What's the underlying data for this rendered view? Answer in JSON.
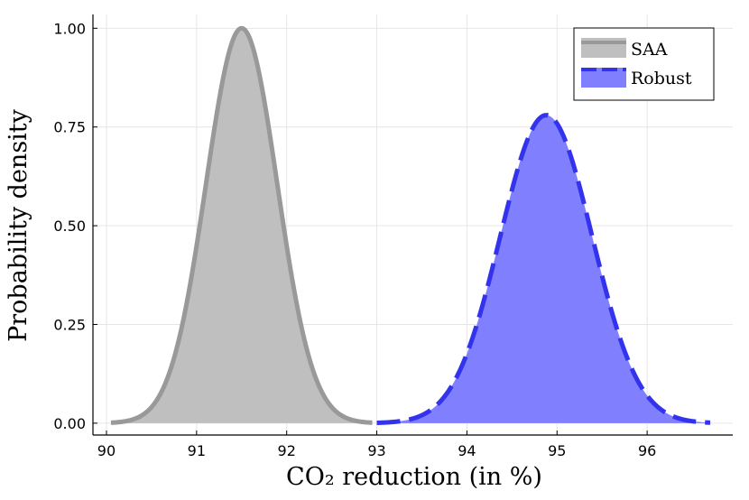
{
  "chart_data": {
    "type": "area",
    "xlabel": "CO₂ reduction (in %)",
    "ylabel": "Probability density",
    "xlim": [
      89.85,
      96.95
    ],
    "ylim": [
      -0.03,
      1.035
    ],
    "xticks": [
      90,
      91,
      92,
      93,
      94,
      95,
      96
    ],
    "xtick_labels": [
      "90",
      "91",
      "92",
      "93",
      "94",
      "95",
      "96"
    ],
    "yticks": [
      0,
      0.25,
      0.5,
      0.75,
      1.0
    ],
    "ytick_labels": [
      "0.00",
      "0.25",
      "0.50",
      "0.75",
      "1.00"
    ],
    "grid": true,
    "legend": "top-right",
    "series": [
      {
        "name": "SAA",
        "color": "#999999",
        "fill": "#bfbfbf",
        "line_style": "solid",
        "distribution": "normal",
        "mean": 91.5,
        "sd": 0.395,
        "x_range": [
          90.05,
          92.95
        ],
        "peak": 1.0
      },
      {
        "name": "Robust",
        "color": "#3333ee",
        "fill": "#8080ff",
        "line_style": "dashed",
        "distribution": "normal",
        "mean": 94.88,
        "sd": 0.51,
        "x_range": [
          93.0,
          96.7
        ],
        "peak": 0.78
      }
    ]
  }
}
